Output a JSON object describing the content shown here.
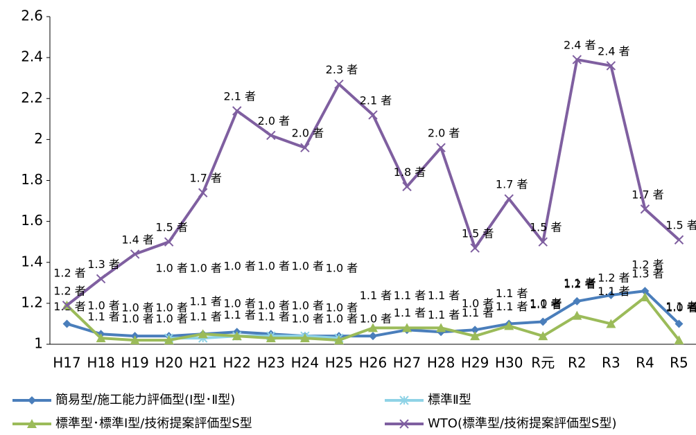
{
  "chart_data": {
    "type": "line",
    "categories": [
      "H17",
      "H18",
      "H19",
      "H20",
      "H21",
      "H22",
      "H23",
      "H24",
      "H25",
      "H26",
      "H27",
      "H28",
      "H29",
      "H30",
      "R元",
      "R2",
      "R3",
      "R4",
      "R5"
    ],
    "ylim": [
      1,
      2.6
    ],
    "yticks": [
      1,
      1.2,
      1.4,
      1.6,
      1.8,
      2,
      2.2,
      2.4,
      2.6
    ],
    "grid": false,
    "legend_position": "bottom",
    "series": [
      {
        "name": "簡易型/施工能力評価型(Ⅰ型･Ⅱ型)",
        "color": "#4a7ebb",
        "marker": "diamond",
        "values": [
          1.1,
          1.05,
          1.04,
          1.04,
          1.05,
          1.06,
          1.05,
          1.04,
          1.04,
          1.04,
          1.07,
          1.06,
          1.07,
          1.1,
          1.11,
          1.21,
          1.24,
          1.26,
          1.1
        ],
        "value_labels": [
          "1.1 者",
          "1.1 者",
          "1.0 者",
          "1.0 者",
          "1.1 者",
          "1.1 者",
          "1.1 者",
          "1.0 者",
          "1.0 者",
          "1.0 者",
          "1.1 者",
          "1.1 者",
          "1.1 者",
          "1.1 者",
          "1.1 者",
          "1.2 者",
          "1.2 者",
          "1.3 者",
          "1.1 者"
        ]
      },
      {
        "name": "標準Ⅱ型",
        "color": "#8fd3e6",
        "marker": "star",
        "values": [
          null,
          null,
          null,
          1.03,
          1.03,
          1.04,
          1.04,
          1.04,
          1.03,
          null,
          null,
          null,
          null,
          null,
          null,
          null,
          null,
          null,
          null
        ],
        "value_labels": [
          null,
          null,
          null,
          "1.0 者",
          "1.0 者",
          "1.0 者",
          "1.0 者",
          "1.0 者",
          "1.0 者",
          null,
          null,
          null,
          null,
          null,
          null,
          null,
          null,
          null,
          null
        ]
      },
      {
        "name": "標準型･標準Ⅰ型/技術提案評価型S型",
        "color": "#9bbb59",
        "marker": "triangle",
        "values": [
          1.19,
          1.03,
          1.02,
          1.02,
          1.05,
          1.04,
          1.03,
          1.03,
          1.02,
          1.08,
          1.08,
          1.08,
          1.04,
          1.09,
          1.04,
          1.14,
          1.1,
          1.23,
          1.02
        ],
        "value_labels": [
          "1.2 者",
          "1.0 者",
          "1.0 者",
          "1.0 者",
          "1.1 者",
          "1.0 者",
          "1.0 者",
          "1.0 者",
          "1.0 者",
          "1.1 者",
          "1.1 者",
          "1.1 者",
          "1.0 者",
          "1.1 者",
          "1.0 者",
          "1.1 者",
          "1.1 者",
          "1.2 者",
          "1.0 者"
        ]
      },
      {
        "name": "WTO(標準型/技術提案評価型S型)",
        "color": "#7f5fa0",
        "marker": "x",
        "values": [
          1.19,
          1.32,
          1.44,
          1.5,
          1.74,
          2.14,
          2.02,
          1.96,
          2.27,
          2.12,
          1.77,
          1.96,
          1.47,
          1.71,
          1.5,
          2.39,
          2.36,
          1.66,
          1.51
        ],
        "value_labels": [
          "1.2 者",
          "1.3 者",
          "1.4 者",
          "1.5 者",
          "1.7 者",
          "2.1 者",
          "2.0 者",
          "2.0 者",
          "2.3 者",
          "2.1 者",
          "1.8 者",
          "2.0 者",
          "1.5 者",
          "1.7 者",
          "1.5 者",
          "2.4 者",
          "2.4 者",
          "1.7 者",
          "1.5 者"
        ]
      }
    ]
  }
}
